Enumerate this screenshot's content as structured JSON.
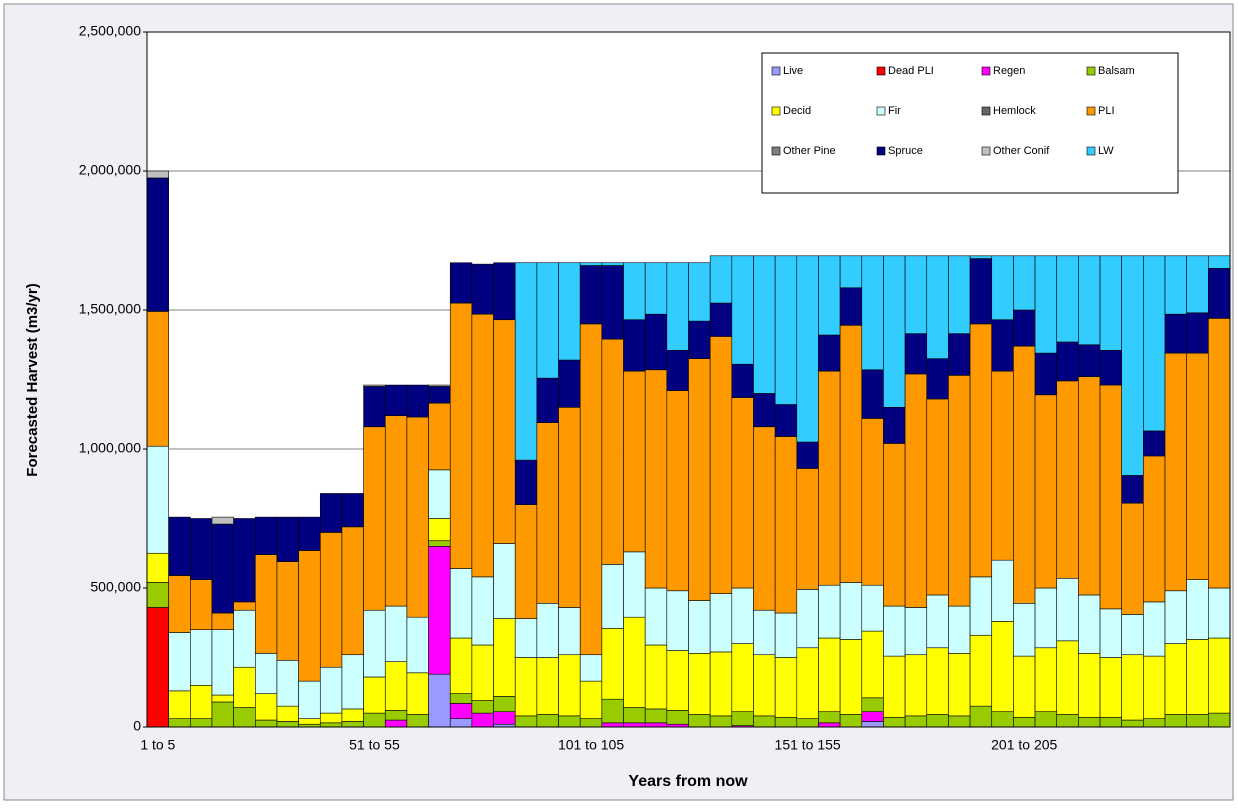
{
  "chart_data": {
    "type": "stacked_bar",
    "x_label": "Years from now",
    "y_label": "Forecasted Harvest (m3/yr)",
    "categories": [
      "1 to 5",
      null,
      null,
      null,
      null,
      null,
      null,
      null,
      null,
      null,
      "51 to 55",
      null,
      null,
      null,
      null,
      null,
      null,
      null,
      null,
      null,
      "101 to 105",
      null,
      null,
      null,
      null,
      null,
      null,
      null,
      null,
      null,
      "151 to 155",
      null,
      null,
      null,
      null,
      null,
      null,
      null,
      null,
      null,
      "201 to 205",
      null,
      null,
      null,
      null,
      null,
      null,
      null,
      null,
      null
    ],
    "ylim": [
      0,
      2500000
    ],
    "yticks": [
      0,
      {
        "value": 500000,
        "label": "500,000"
      },
      {
        "value": 1000000,
        "label": "1,000,000"
      },
      {
        "value": 1500000,
        "label": "1,500,000"
      },
      {
        "value": 2000000,
        "label": "2,000,000"
      },
      {
        "value": 2500000,
        "label": "2,500,000"
      }
    ],
    "grid": true,
    "legend": "upper right",
    "series": [
      {
        "name": "Live",
        "color": "#9999ff",
        "values": [
          0,
          0,
          0,
          0,
          0,
          0,
          0,
          0,
          0,
          0,
          0,
          0,
          0,
          190000,
          30000,
          0,
          10000,
          0,
          0,
          0,
          0,
          0,
          0,
          0,
          0,
          0,
          0,
          0,
          0,
          0,
          0,
          0,
          0,
          20000,
          0,
          0,
          0,
          0,
          0,
          0,
          0,
          0,
          0,
          0,
          0,
          0,
          0,
          0,
          0,
          0
        ]
      },
      {
        "name": "Dead PLI",
        "color": "#ff0000",
        "values": [
          430000,
          0,
          0,
          0,
          0,
          0,
          0,
          0,
          0,
          0,
          0,
          0,
          0,
          0,
          0,
          0,
          0,
          0,
          0,
          0,
          0,
          0,
          0,
          0,
          0,
          0,
          0,
          0,
          0,
          0,
          0,
          0,
          0,
          0,
          0,
          0,
          0,
          0,
          0,
          0,
          0,
          0,
          0,
          0,
          0,
          0,
          0,
          0,
          0,
          0
        ]
      },
      {
        "name": "Regen",
        "color": "#ff00ff",
        "values": [
          0,
          0,
          0,
          0,
          0,
          0,
          0,
          0,
          0,
          0,
          0,
          25000,
          0,
          460000,
          55000,
          50000,
          45000,
          0,
          0,
          0,
          0,
          15000,
          15000,
          15000,
          10000,
          0,
          0,
          5000,
          0,
          0,
          0,
          15000,
          0,
          35000,
          0,
          0,
          0,
          0,
          0,
          0,
          0,
          0,
          0,
          0,
          0,
          0,
          0,
          0,
          0,
          0
        ]
      },
      {
        "name": "Balsam",
        "color": "#99cc00",
        "values": [
          90000,
          30000,
          30000,
          90000,
          70000,
          25000,
          20000,
          10000,
          15000,
          20000,
          50000,
          35000,
          45000,
          20000,
          35000,
          45000,
          55000,
          40000,
          45000,
          40000,
          30000,
          85000,
          55000,
          50000,
          50000,
          45000,
          40000,
          50000,
          40000,
          35000,
          30000,
          40000,
          45000,
          50000,
          35000,
          40000,
          45000,
          40000,
          75000,
          55000,
          35000,
          55000,
          45000,
          35000,
          35000,
          25000,
          30000,
          45000,
          45000,
          50000
        ]
      },
      {
        "name": "Decid",
        "color": "#ffff00",
        "values": [
          105000,
          100000,
          120000,
          25000,
          145000,
          95000,
          55000,
          20000,
          35000,
          45000,
          130000,
          175000,
          150000,
          80000,
          200000,
          200000,
          280000,
          210000,
          205000,
          220000,
          135000,
          255000,
          325000,
          230000,
          215000,
          220000,
          230000,
          245000,
          220000,
          215000,
          255000,
          265000,
          270000,
          240000,
          220000,
          220000,
          240000,
          225000,
          255000,
          325000,
          220000,
          230000,
          265000,
          230000,
          215000,
          235000,
          225000,
          255000,
          270000,
          270000
        ]
      },
      {
        "name": "Fir",
        "color": "#ccffff",
        "values": [
          385000,
          210000,
          200000,
          235000,
          205000,
          145000,
          165000,
          135000,
          165000,
          195000,
          240000,
          200000,
          200000,
          175000,
          250000,
          245000,
          270000,
          140000,
          195000,
          170000,
          95000,
          230000,
          235000,
          205000,
          215000,
          190000,
          210000,
          200000,
          160000,
          160000,
          210000,
          190000,
          205000,
          165000,
          180000,
          170000,
          190000,
          170000,
          210000,
          220000,
          190000,
          215000,
          225000,
          210000,
          175000,
          145000,
          195000,
          190000,
          215000,
          180000
        ]
      },
      {
        "name": "Hemlock",
        "color": "#666666",
        "values": [
          0,
          0,
          0,
          0,
          0,
          0,
          0,
          0,
          0,
          0,
          0,
          0,
          0,
          0,
          0,
          0,
          0,
          0,
          0,
          0,
          0,
          0,
          0,
          0,
          0,
          0,
          0,
          0,
          0,
          0,
          0,
          0,
          0,
          0,
          0,
          0,
          0,
          0,
          0,
          0,
          0,
          0,
          0,
          0,
          0,
          0,
          0,
          0,
          0,
          0
        ]
      },
      {
        "name": "PLI",
        "color": "#ff9900",
        "values": [
          485000,
          205000,
          180000,
          60000,
          30000,
          355000,
          355000,
          470000,
          485000,
          460000,
          660000,
          685000,
          720000,
          240000,
          955000,
          945000,
          805000,
          410000,
          650000,
          720000,
          1190000,
          810000,
          650000,
          785000,
          720000,
          870000,
          925000,
          685000,
          660000,
          635000,
          435000,
          770000,
          925000,
          600000,
          585000,
          840000,
          705000,
          830000,
          910000,
          680000,
          925000,
          695000,
          710000,
          785000,
          805000,
          400000,
          525000,
          855000,
          815000,
          970000
        ]
      },
      {
        "name": "Other Pine",
        "color": "#808080",
        "values": [
          0,
          0,
          0,
          0,
          0,
          0,
          0,
          0,
          0,
          0,
          0,
          0,
          0,
          0,
          0,
          0,
          0,
          0,
          0,
          0,
          0,
          0,
          0,
          0,
          0,
          0,
          0,
          0,
          0,
          0,
          0,
          0,
          0,
          0,
          0,
          0,
          0,
          0,
          0,
          0,
          0,
          0,
          0,
          0,
          0,
          0,
          0,
          0,
          0,
          0
        ]
      },
      {
        "name": "Spruce",
        "color": "#000080",
        "values": [
          480000,
          210000,
          220000,
          320000,
          300000,
          135000,
          160000,
          120000,
          140000,
          120000,
          145000,
          110000,
          115000,
          60000,
          145000,
          180000,
          205000,
          160000,
          160000,
          170000,
          210000,
          265000,
          185000,
          200000,
          145000,
          135000,
          120000,
          120000,
          120000,
          115000,
          95000,
          130000,
          135000,
          175000,
          130000,
          145000,
          145000,
          150000,
          235000,
          185000,
          130000,
          150000,
          140000,
          115000,
          125000,
          100000,
          90000,
          140000,
          145000,
          180000
        ]
      },
      {
        "name": "Other Conif",
        "color": "#c0c0c0",
        "values": [
          25000,
          0,
          0,
          25000,
          0,
          0,
          0,
          0,
          0,
          0,
          5000,
          0,
          0,
          5000,
          0,
          0,
          0,
          0,
          0,
          0,
          0,
          0,
          0,
          0,
          0,
          0,
          0,
          0,
          0,
          0,
          0,
          0,
          0,
          0,
          0,
          0,
          0,
          0,
          0,
          0,
          0,
          0,
          0,
          0,
          0,
          0,
          0,
          0,
          0,
          0
        ]
      },
      {
        "name": "LW",
        "color": "#33ccff",
        "values": [
          0,
          0,
          0,
          0,
          0,
          0,
          0,
          0,
          0,
          0,
          0,
          0,
          0,
          0,
          0,
          0,
          0,
          710000,
          415000,
          350000,
          10000,
          10000,
          205000,
          185000,
          315000,
          210000,
          170000,
          390000,
          495000,
          535000,
          670000,
          285000,
          115000,
          410000,
          545000,
          280000,
          370000,
          280000,
          10000,
          230000,
          195000,
          350000,
          310000,
          320000,
          340000,
          790000,
          630000,
          210000,
          205000,
          45000
        ]
      }
    ]
  }
}
